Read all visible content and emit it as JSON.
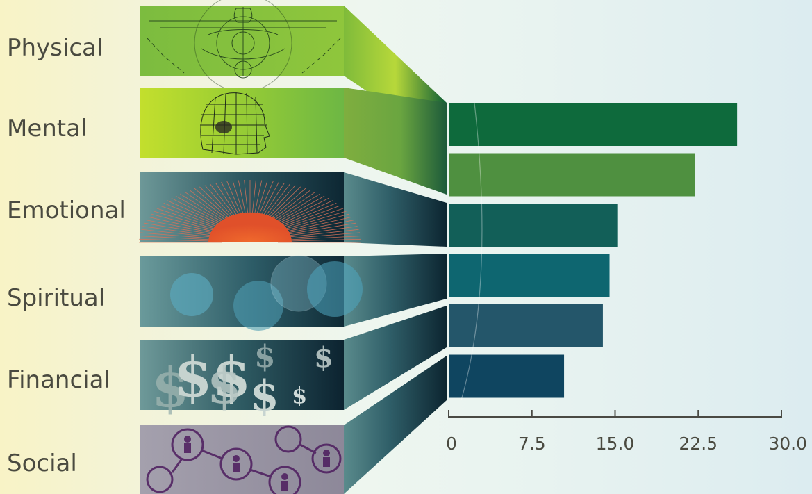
{
  "chart_data": {
    "type": "bar",
    "orientation": "horizontal",
    "categories": [
      "Physical",
      "Mental",
      "Emotional",
      "Spiritual",
      "Financial",
      "Social"
    ],
    "bars": [
      {
        "value": 26.0,
        "color": "#0e6a3c"
      },
      {
        "value": 22.2,
        "color": "#4f9040"
      },
      {
        "value": 15.2,
        "color": "#125f58"
      },
      {
        "value": 14.5,
        "color": "#0e6670"
      },
      {
        "value": 13.9,
        "color": "#24566a"
      },
      {
        "value": 10.4,
        "color": "#0f4560"
      }
    ],
    "category_colors": [
      "#8cc63f",
      "#7bbf45",
      "#3d6e73",
      "#3b6e77",
      "#34606a",
      "#2f6470"
    ],
    "xaxis": {
      "min": 0,
      "max": 30.0,
      "ticks": [
        "0",
        "7.5",
        "15.0",
        "22.5",
        "30.0"
      ]
    },
    "title": "",
    "xlabel": "",
    "ylabel": ""
  }
}
